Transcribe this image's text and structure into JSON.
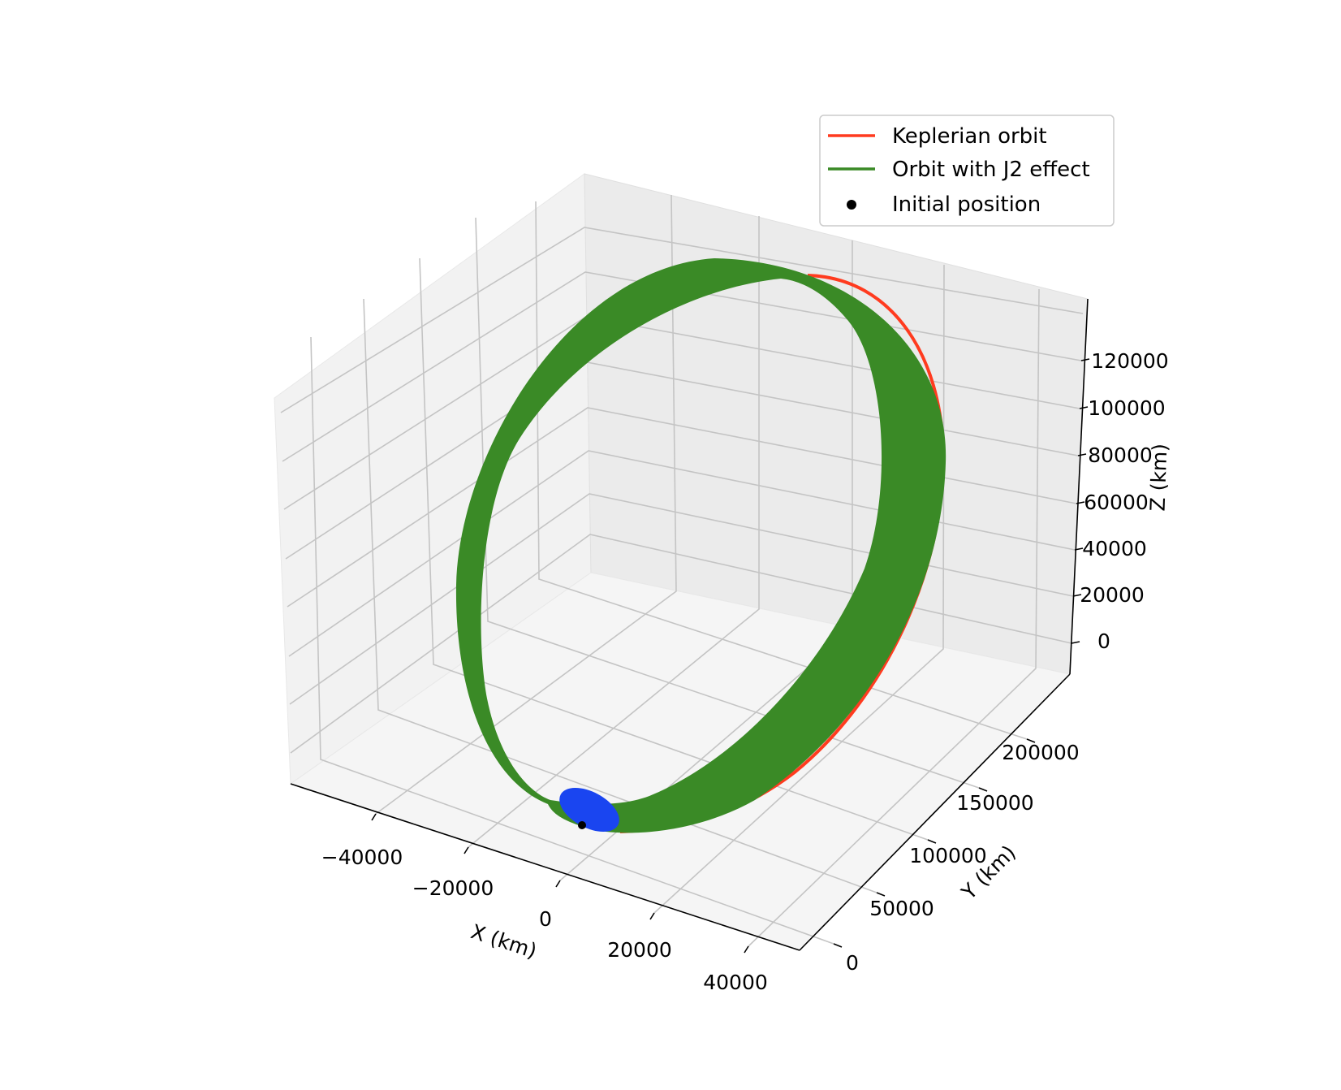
{
  "chart_data": {
    "type": "line",
    "projection": "3d",
    "title": "",
    "xlabel": "X (km)",
    "ylabel": "Y (km)",
    "zlabel": "Z (km)",
    "x_ticks": [
      "−40000",
      "−20000",
      "0",
      "20000",
      "40000"
    ],
    "y_ticks": [
      "0",
      "50000",
      "100000",
      "150000",
      "200000"
    ],
    "z_ticks": [
      "0",
      "20000",
      "40000",
      "60000",
      "80000",
      "100000",
      "120000"
    ],
    "xlim": [
      -55000,
      52000
    ],
    "ylim": [
      -20000,
      240000
    ],
    "zlim": [
      -10000,
      140000
    ],
    "grid": true,
    "legend_position": "top-right",
    "colors": {
      "kepler": "#ff3b1f",
      "j2": "#3a8a26",
      "initial": "#000000",
      "earth": "#1a45f0"
    },
    "series": [
      {
        "name": "Keplerian orbit",
        "kind": "line",
        "color": "#ff3b1f"
      },
      {
        "name": "Orbit with J2 effect",
        "kind": "band",
        "color": "#3a8a26"
      },
      {
        "name": "Initial position",
        "kind": "point",
        "color": "#000000"
      }
    ],
    "legend": [
      "Keplerian orbit",
      "Orbit with J2 effect",
      "Initial position"
    ]
  }
}
